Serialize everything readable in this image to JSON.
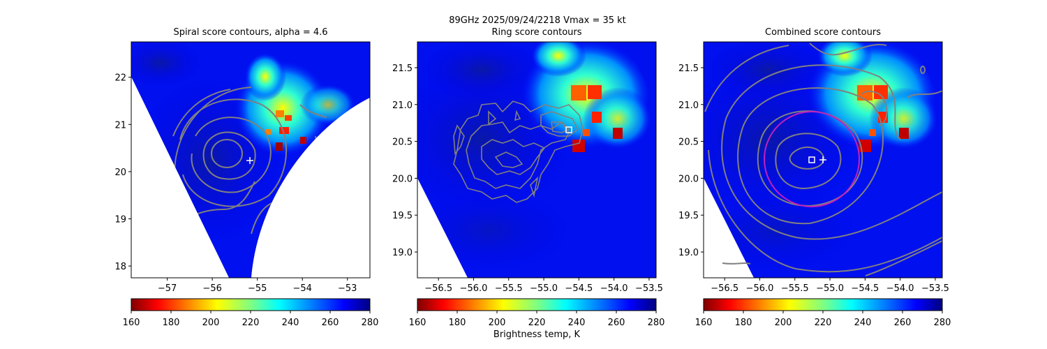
{
  "suptitle": {
    "line1": "89GHz  2025/09/24/2218    Vmax = 35 kt"
  },
  "chart_data": [
    {
      "type": "heatmap",
      "title": "Spiral score contours, alpha =  4.6",
      "xlim": [
        -57.8,
        -52.5
      ],
      "ylim": [
        17.75,
        22.75
      ],
      "xticks": [
        -57,
        -56,
        -55,
        -54,
        -53
      ],
      "xtick_labels": [
        "−57",
        "−56",
        "−55",
        "−54",
        "−53"
      ],
      "yticks": [
        18,
        19,
        20,
        21,
        22
      ],
      "ytick_labels": [
        "18",
        "19",
        "20",
        "21",
        "22"
      ],
      "center_marker": {
        "symbol": "+",
        "lon": -55.15,
        "lat": 20.25
      },
      "contour_color": "#808080",
      "colorbar": {
        "min": 160,
        "max": 280,
        "ticks": [
          160,
          180,
          200,
          220,
          240,
          260,
          280
        ],
        "colormap": "jet_r"
      },
      "grid": false
    },
    {
      "type": "heatmap",
      "title": "Ring score contours",
      "xlabel": "Brightness temp, K",
      "xlim": [
        -56.8,
        -53.4
      ],
      "ylim": [
        18.65,
        21.85
      ],
      "xticks": [
        -56.5,
        -56.0,
        -55.5,
        -55.0,
        -54.5,
        -54.0,
        -53.5
      ],
      "xtick_labels": [
        "−56.5",
        "−56.0",
        "−55.5",
        "−55.0",
        "−54.5",
        "−54.0",
        "−53.5"
      ],
      "yticks": [
        19.0,
        19.5,
        20.0,
        20.5,
        21.0,
        21.5
      ],
      "ytick_labels": [
        "19.0",
        "19.5",
        "20.0",
        "20.5",
        "21.0",
        "21.5"
      ],
      "center_marker": {
        "symbol": "square",
        "lon": -54.65,
        "lat": 20.65
      },
      "contour_color": "#808080",
      "colorbar": {
        "min": 160,
        "max": 280,
        "ticks": [
          160,
          180,
          200,
          220,
          240,
          260,
          280
        ],
        "colormap": "jet_r"
      },
      "grid": false
    },
    {
      "type": "heatmap",
      "title": "Combined score contours",
      "xlim": [
        -56.8,
        -53.4
      ],
      "ylim": [
        18.65,
        21.85
      ],
      "xticks": [
        -56.5,
        -56.0,
        -55.5,
        -55.0,
        -54.5,
        -54.0,
        -53.5
      ],
      "xtick_labels": [
        "−56.5",
        "−56.0",
        "−55.5",
        "−55.0",
        "−54.5",
        "−54.0",
        "−53.5"
      ],
      "yticks": [
        19.0,
        19.5,
        20.0,
        20.5,
        21.0,
        21.5
      ],
      "ytick_labels": [
        "19.0",
        "19.5",
        "20.0",
        "20.5",
        "21.0",
        "21.5"
      ],
      "center_marker": {
        "symbol": "square",
        "lon": -55.25,
        "lat": 20.25
      },
      "first_guess_marker": {
        "symbol": "+",
        "lon": -55.07,
        "lat": 20.25
      },
      "ring": {
        "lon": -55.25,
        "lat": 20.27,
        "radius_deg": 0.65,
        "color": "#c020c0"
      },
      "contour_color": "#808080",
      "colorbar": {
        "min": 160,
        "max": 280,
        "ticks": [
          160,
          180,
          200,
          220,
          240,
          260,
          280
        ],
        "colormap": "jet_r"
      },
      "grid": false
    }
  ]
}
